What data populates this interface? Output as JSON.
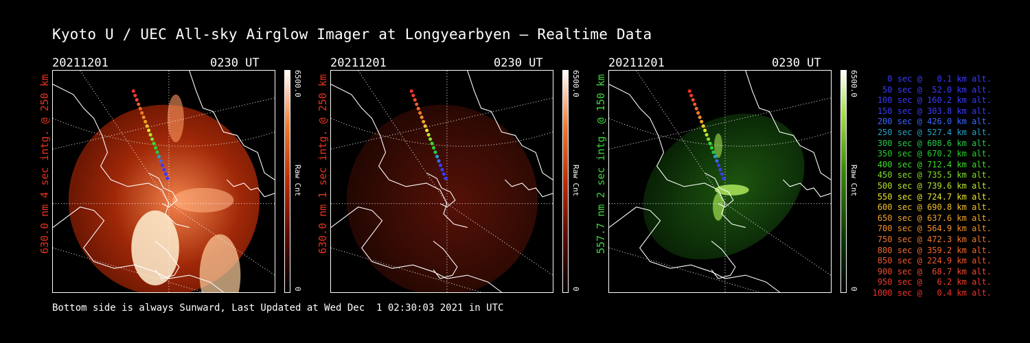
{
  "title": "Kyoto U / UEC All-sky Airglow Imager at Longyearbyen — Realtime Data",
  "panels": [
    {
      "date": "20211201",
      "time": "0230 UT",
      "side_label": "630.0 nm 4 sec intg. @ 250 km",
      "label_color": "#e8331c",
      "cbar_max": "6500.0",
      "cbar_min": "0",
      "cbar_unit": "Raw Cnt",
      "theme": "red-bright"
    },
    {
      "date": "20211201",
      "time": "0230 UT",
      "side_label": "630.0 nm 1 sec intg. @ 250 km",
      "label_color": "#e8331c",
      "cbar_max": "6500.0",
      "cbar_min": "0",
      "cbar_unit": "Raw Cnt",
      "theme": "red-dim"
    },
    {
      "date": "20211201",
      "time": "0230 UT",
      "side_label": "557.7 nm 2 sec intg. @ 150 km",
      "label_color": "#3fd43f",
      "cbar_max": "6500.0",
      "cbar_min": "0",
      "cbar_unit": "Raw Cnt",
      "theme": "green"
    }
  ],
  "legend": [
    {
      "text": "0 sec @   0.1 km alt.",
      "color": "#3a3aff"
    },
    {
      "text": "50 sec @  52.0 km alt.",
      "color": "#3a3aff"
    },
    {
      "text": "100 sec @ 160.2 km alt.",
      "color": "#3a3aff"
    },
    {
      "text": "150 sec @ 303.8 km alt.",
      "color": "#3a3aff"
    },
    {
      "text": "200 sec @ 426.0 km alt.",
      "color": "#3a66ff"
    },
    {
      "text": "250 sec @ 527.4 km alt.",
      "color": "#2aa0c8"
    },
    {
      "text": "300 sec @ 608.6 km alt.",
      "color": "#27c84a"
    },
    {
      "text": "350 sec @ 670.2 km alt.",
      "color": "#27d02a"
    },
    {
      "text": "400 sec @ 712.4 km alt.",
      "color": "#3edc2a"
    },
    {
      "text": "450 sec @ 735.5 km alt.",
      "color": "#7fe02a"
    },
    {
      "text": "500 sec @ 739.6 km alt.",
      "color": "#b6e52a"
    },
    {
      "text": "550 sec @ 724.7 km alt.",
      "color": "#e6e62a"
    },
    {
      "text": "600 sec @ 690.8 km alt.",
      "color": "#f0c22a"
    },
    {
      "text": "650 sec @ 637.6 km alt.",
      "color": "#f0a32a"
    },
    {
      "text": "700 sec @ 564.9 km alt.",
      "color": "#f08f2a"
    },
    {
      "text": "750 sec @ 472.3 km alt.",
      "color": "#f0782a"
    },
    {
      "text": "800 sec @ 359.2 km alt.",
      "color": "#f0682a"
    },
    {
      "text": "850 sec @ 224.9 km alt.",
      "color": "#f0582a"
    },
    {
      "text": "900 sec @  68.7 km alt.",
      "color": "#f04a2a"
    },
    {
      "text": "950 sec @   6.2 km alt.",
      "color": "#f03c2a"
    },
    {
      "text": "1000 sec @   0.4 km alt.",
      "color": "#f0302a"
    }
  ],
  "footer": "Bottom side is always Sunward, Last Updated at Wed Dec  1 02:30:03 2021 in UTC"
}
